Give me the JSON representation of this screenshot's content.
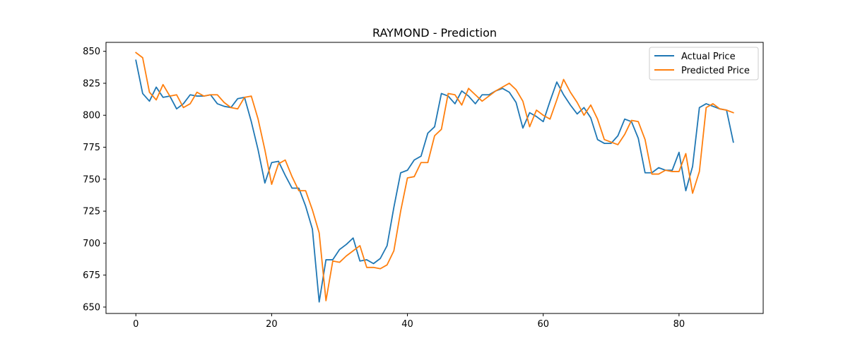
{
  "chart_data": {
    "type": "line",
    "title": "RAYMOND - Prediction",
    "xlabel": "",
    "ylabel": "",
    "xlim": [
      -4.4,
      92.4
    ],
    "ylim": [
      645,
      857
    ],
    "x_ticks": [
      0,
      20,
      40,
      60,
      80
    ],
    "y_ticks": [
      650,
      675,
      700,
      725,
      750,
      775,
      800,
      825,
      850
    ],
    "legend_position": "top-right",
    "grid": false,
    "series": [
      {
        "name": "Actual Price",
        "color": "#1f77b4",
        "values": [
          843,
          817,
          811,
          822,
          814,
          815,
          805,
          809,
          816,
          815,
          815,
          816,
          809,
          807,
          806,
          813,
          814,
          795,
          773,
          747,
          763,
          764,
          753,
          743,
          743,
          729,
          711,
          654,
          687,
          687,
          695,
          699,
          704,
          686,
          687,
          684,
          688,
          698,
          728,
          755,
          757,
          765,
          768,
          786,
          791,
          817,
          815,
          809,
          819,
          815,
          809,
          816,
          816,
          819,
          821,
          818,
          810,
          790,
          802,
          799,
          795,
          811,
          826,
          816,
          808,
          801,
          806,
          798,
          781,
          778,
          778,
          784,
          797,
          795,
          782,
          755,
          755,
          759,
          757,
          757,
          771,
          741,
          760,
          806,
          809,
          807,
          805,
          804,
          779
        ]
      },
      {
        "name": "Predicted Price",
        "color": "#ff7f0e",
        "values": [
          849,
          845,
          818,
          812,
          824,
          815,
          816,
          806,
          809,
          818,
          815,
          816,
          816,
          810,
          806,
          805,
          814,
          815,
          797,
          773,
          746,
          762,
          765,
          752,
          741,
          741,
          726,
          708,
          655,
          686,
          685,
          690,
          694,
          698,
          681,
          681,
          680,
          683,
          694,
          725,
          751,
          752,
          763,
          763,
          784,
          789,
          817,
          816,
          808,
          821,
          816,
          811,
          815,
          819,
          822,
          825,
          820,
          811,
          791,
          804,
          800,
          797,
          812,
          828,
          818,
          810,
          800,
          808,
          797,
          781,
          779,
          777,
          785,
          796,
          795,
          781,
          754,
          754,
          757,
          756,
          756,
          770,
          739,
          756,
          806,
          809,
          805,
          804,
          802
        ]
      }
    ]
  }
}
